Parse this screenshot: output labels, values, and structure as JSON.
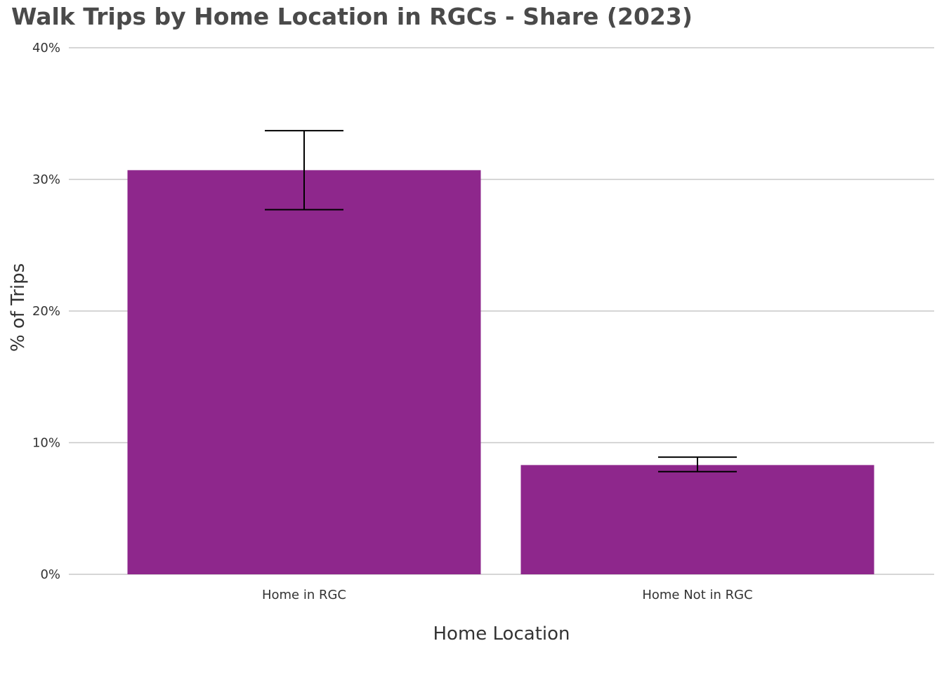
{
  "chart_data": {
    "type": "bar",
    "title": "Walk Trips by Home Location in RGCs - Share (2023)",
    "xlabel": "Home Location",
    "ylabel": "% of Trips",
    "categories": [
      "Home in RGC",
      "Home Not in RGC"
    ],
    "values": [
      30.7,
      8.3
    ],
    "error_bars": [
      {
        "low": 27.7,
        "high": 33.7
      },
      {
        "low": 7.8,
        "high": 8.9
      }
    ],
    "ylim": [
      0,
      40
    ],
    "y_ticks": [
      0,
      10,
      20,
      30,
      40
    ],
    "y_tick_labels": [
      "0%",
      "10%",
      "20%",
      "30%",
      "40%"
    ],
    "grid": true,
    "legend": "none",
    "colors": {
      "bar": "#8e278c",
      "grid": "#c8c8c8",
      "title": "#4a4a4a",
      "error_bar": "#000000"
    }
  }
}
